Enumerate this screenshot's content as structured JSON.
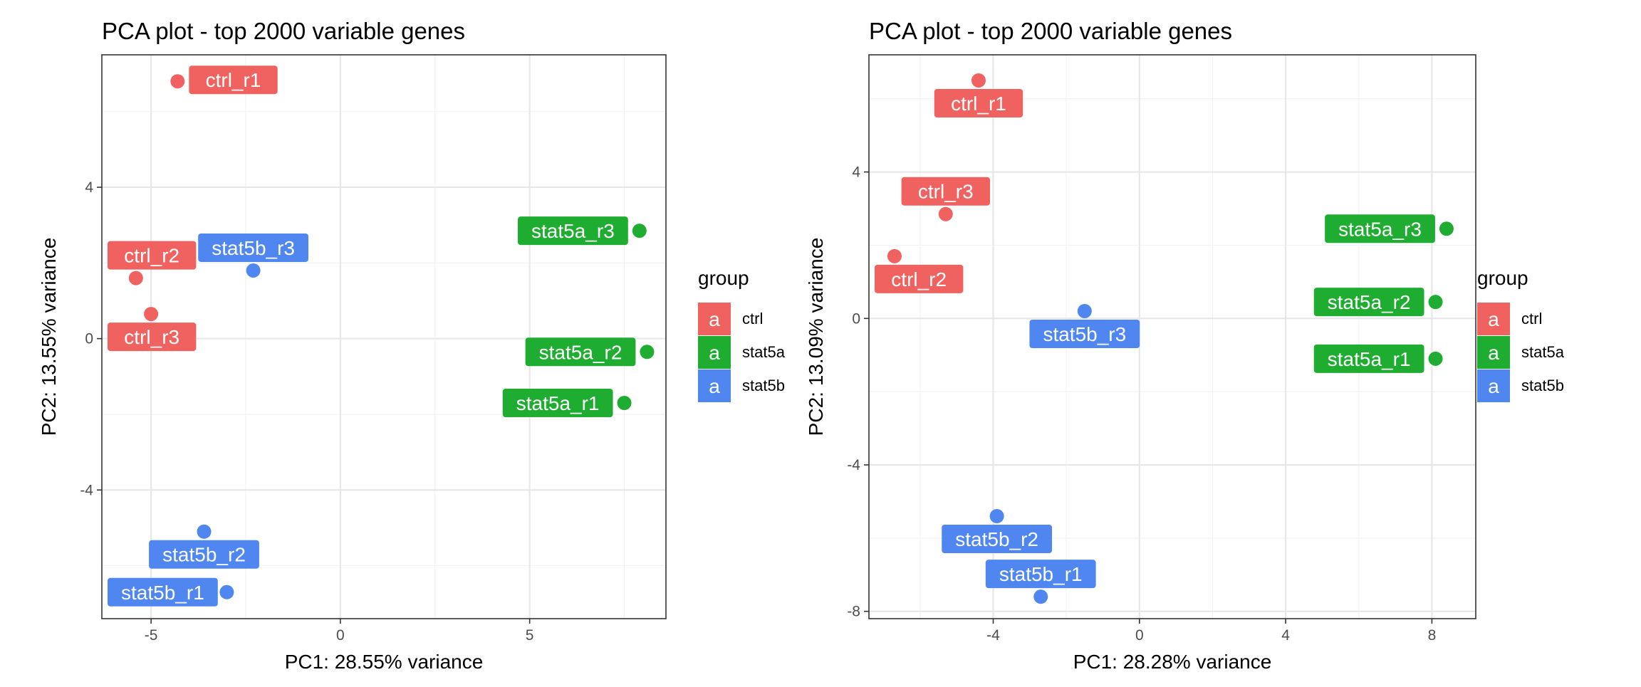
{
  "legend_colors": {
    "ctrl": "#F0625F",
    "stat5a": "#1FAD31",
    "stat5b": "#4F86F0"
  },
  "chart_data": [
    {
      "type": "scatter",
      "title": "PCA plot - top 2000 variable genes",
      "xlabel": "PC1: 28.55% variance",
      "ylabel": "PC2: 13.55% variance",
      "xlim": [
        -6.3,
        8.6
      ],
      "ylim": [
        -7.4,
        7.5
      ],
      "xticks": [
        -5,
        0,
        5
      ],
      "xtick_labels": [
        "-5",
        "0",
        "5"
      ],
      "yticks": [
        -4,
        0,
        4
      ],
      "ytick_labels": [
        "-4",
        "0",
        "4"
      ],
      "grid": true,
      "legend": {
        "title": "group",
        "placement": "right",
        "key_glyph": "a",
        "entries": [
          "ctrl",
          "stat5a",
          "stat5b"
        ]
      },
      "points": [
        {
          "label": "ctrl_r1",
          "group": "ctrl",
          "x": -4.3,
          "y": 6.8,
          "label_side": "right"
        },
        {
          "label": "ctrl_r2",
          "group": "ctrl",
          "x": -5.4,
          "y": 1.6,
          "label_side": "above"
        },
        {
          "label": "ctrl_r3",
          "group": "ctrl",
          "x": -5.0,
          "y": 0.65,
          "label_side": "below"
        },
        {
          "label": "stat5a_r1",
          "group": "stat5a",
          "x": 7.5,
          "y": -1.7,
          "label_side": "left"
        },
        {
          "label": "stat5a_r2",
          "group": "stat5a",
          "x": 8.1,
          "y": -0.35,
          "label_side": "left"
        },
        {
          "label": "stat5a_r3",
          "group": "stat5a",
          "x": 7.9,
          "y": 2.85,
          "label_side": "left"
        },
        {
          "label": "stat5b_r1",
          "group": "stat5b",
          "x": -3.0,
          "y": -6.7,
          "label_side": "left"
        },
        {
          "label": "stat5b_r2",
          "group": "stat5b",
          "x": -3.6,
          "y": -5.1,
          "label_side": "below"
        },
        {
          "label": "stat5b_r3",
          "group": "stat5b",
          "x": -2.3,
          "y": 1.8,
          "label_side": "above"
        }
      ]
    },
    {
      "type": "scatter",
      "title": "PCA plot - top 2000 variable genes",
      "xlabel": "PC1: 28.28% variance",
      "ylabel": "PC2: 13.09% variance",
      "xlim": [
        -7.4,
        9.2
      ],
      "ylim": [
        -8.2,
        7.2
      ],
      "xticks": [
        -4,
        0,
        4,
        8
      ],
      "xtick_labels": [
        "-4",
        "0",
        "4",
        "8"
      ],
      "yticks": [
        -8,
        -4,
        0,
        4
      ],
      "ytick_labels": [
        "-8",
        "-4",
        "0",
        "4"
      ],
      "grid": true,
      "legend": {
        "title": "group",
        "placement": "right",
        "key_glyph": "a",
        "entries": [
          "ctrl",
          "stat5a",
          "stat5b"
        ]
      },
      "points": [
        {
          "label": "ctrl_r1",
          "group": "ctrl",
          "x": -4.4,
          "y": 6.5,
          "label_side": "below"
        },
        {
          "label": "ctrl_r2",
          "group": "ctrl",
          "x": -6.7,
          "y": 1.7,
          "label_side": "below"
        },
        {
          "label": "ctrl_r3",
          "group": "ctrl",
          "x": -5.3,
          "y": 2.85,
          "label_side": "above"
        },
        {
          "label": "stat5a_r1",
          "group": "stat5a",
          "x": 8.1,
          "y": -1.1,
          "label_side": "left"
        },
        {
          "label": "stat5a_r2",
          "group": "stat5a",
          "x": 8.1,
          "y": 0.45,
          "label_side": "left"
        },
        {
          "label": "stat5a_r3",
          "group": "stat5a",
          "x": 8.4,
          "y": 2.45,
          "label_side": "left"
        },
        {
          "label": "stat5b_r1",
          "group": "stat5b",
          "x": -2.7,
          "y": -7.6,
          "label_side": "above"
        },
        {
          "label": "stat5b_r2",
          "group": "stat5b",
          "x": -3.9,
          "y": -5.4,
          "label_side": "below"
        },
        {
          "label": "stat5b_r3",
          "group": "stat5b",
          "x": -1.5,
          "y": 0.2,
          "label_side": "below"
        }
      ]
    }
  ]
}
